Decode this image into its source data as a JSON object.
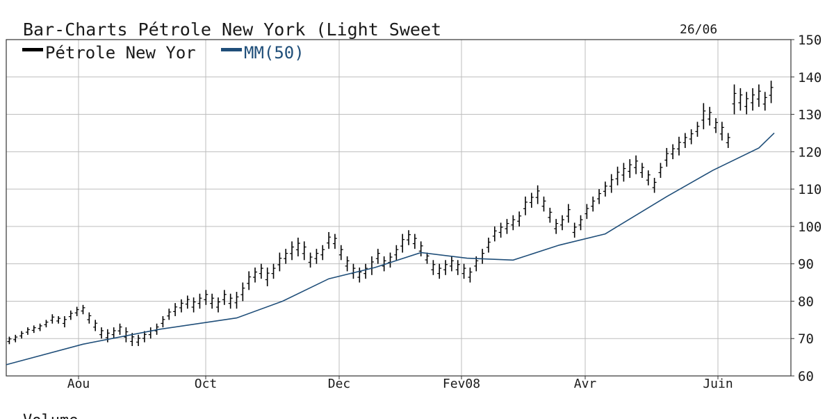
{
  "chart_data": {
    "type": "line",
    "chart_style": "OHLC bar chart",
    "title": "Bar-Charts   Pétrole New York (Light Sweet",
    "date_label": "26/06",
    "legend": [
      {
        "label": "Pétrole New Yor",
        "color": "#000000"
      },
      {
        "label": "MM(50)",
        "color": "#1f4e79"
      }
    ],
    "legend_placement": "top-left",
    "footer_label": "Volume",
    "y_axis": {
      "position": "right",
      "ylim": [
        60,
        150
      ],
      "ticks": [
        60,
        70,
        80,
        90,
        100,
        110,
        120,
        130,
        140,
        150
      ]
    },
    "x_ticks": [
      "Aou",
      "Oct",
      "Dec",
      "Fev08",
      "Avr",
      "Juin"
    ],
    "grid": true,
    "series": [
      {
        "name": "Pétrole New Yor",
        "type": "ohlc",
        "values": [
          [
            1,
            68.5,
            70.5
          ],
          [
            3,
            69,
            71
          ],
          [
            5,
            70,
            72
          ],
          [
            7,
            71,
            73
          ],
          [
            9,
            71.5,
            73.5
          ],
          [
            11,
            72,
            74
          ],
          [
            13,
            73,
            75
          ],
          [
            15,
            74,
            76.5
          ],
          [
            17,
            74,
            76
          ],
          [
            19,
            73,
            76
          ],
          [
            21,
            75,
            77.5
          ],
          [
            23,
            76,
            78.5
          ],
          [
            25,
            76.5,
            79
          ],
          [
            27,
            74,
            77
          ],
          [
            29,
            72,
            75
          ],
          [
            31,
            70,
            73
          ],
          [
            33,
            69,
            72.5
          ],
          [
            35,
            70,
            73
          ],
          [
            37,
            71,
            74
          ],
          [
            39,
            69,
            73
          ],
          [
            41,
            68,
            71.5
          ],
          [
            43,
            68,
            71
          ],
          [
            45,
            69,
            72
          ],
          [
            47,
            70,
            73
          ],
          [
            49,
            71,
            74
          ],
          [
            51,
            73,
            76
          ],
          [
            53,
            75,
            78
          ],
          [
            55,
            76,
            79.5
          ],
          [
            57,
            77,
            80.5
          ],
          [
            59,
            78,
            81.5
          ],
          [
            61,
            77,
            81
          ],
          [
            63,
            78,
            82
          ],
          [
            65,
            79,
            83
          ],
          [
            67,
            78,
            82
          ],
          [
            69,
            77,
            81
          ],
          [
            71,
            79,
            83
          ],
          [
            73,
            78,
            82
          ],
          [
            75,
            78,
            82.5
          ],
          [
            77,
            80,
            85
          ],
          [
            79,
            83,
            88
          ],
          [
            81,
            85,
            89
          ],
          [
            83,
            86,
            90
          ],
          [
            85,
            84,
            89
          ],
          [
            87,
            86,
            90
          ],
          [
            89,
            88,
            93
          ],
          [
            91,
            90,
            94
          ],
          [
            93,
            91,
            96
          ],
          [
            95,
            92,
            97
          ],
          [
            97,
            91,
            96
          ],
          [
            99,
            89,
            93
          ],
          [
            101,
            90,
            94
          ],
          [
            103,
            91,
            95
          ],
          [
            105,
            94,
            98.5
          ],
          [
            107,
            94,
            98
          ],
          [
            109,
            91,
            95
          ],
          [
            111,
            88,
            92
          ],
          [
            113,
            86,
            90
          ],
          [
            115,
            85,
            89
          ],
          [
            117,
            86,
            90
          ],
          [
            119,
            87,
            92
          ],
          [
            121,
            90,
            94
          ],
          [
            123,
            88,
            92
          ],
          [
            125,
            89,
            93
          ],
          [
            127,
            91,
            95
          ],
          [
            129,
            93,
            98
          ],
          [
            131,
            95,
            99
          ],
          [
            133,
            94,
            98
          ],
          [
            135,
            92,
            96
          ],
          [
            137,
            90,
            93
          ],
          [
            139,
            87,
            91
          ],
          [
            141,
            86,
            90
          ],
          [
            143,
            87,
            91
          ],
          [
            145,
            88,
            92
          ],
          [
            147,
            87,
            91
          ],
          [
            149,
            86,
            90
          ],
          [
            151,
            85,
            89
          ],
          [
            153,
            88,
            92
          ],
          [
            155,
            90,
            94
          ],
          [
            157,
            93,
            97
          ],
          [
            159,
            96,
            100
          ],
          [
            161,
            97,
            101
          ],
          [
            163,
            98,
            102
          ],
          [
            165,
            99,
            103
          ],
          [
            167,
            100,
            104
          ],
          [
            169,
            103,
            108
          ],
          [
            171,
            105,
            109
          ],
          [
            173,
            106,
            111
          ],
          [
            175,
            104,
            108
          ],
          [
            177,
            101,
            105
          ],
          [
            179,
            98,
            102
          ],
          [
            181,
            99,
            103
          ],
          [
            183,
            101,
            106
          ],
          [
            185,
            97,
            101
          ],
          [
            187,
            99,
            103
          ],
          [
            189,
            102,
            106
          ],
          [
            191,
            104,
            108
          ],
          [
            193,
            106,
            110
          ],
          [
            195,
            108,
            112
          ],
          [
            197,
            109,
            114
          ],
          [
            199,
            111,
            116
          ],
          [
            201,
            112,
            117
          ],
          [
            203,
            113,
            118
          ],
          [
            205,
            114,
            119
          ],
          [
            207,
            113,
            117
          ],
          [
            209,
            111,
            115
          ],
          [
            211,
            109,
            113
          ],
          [
            213,
            113,
            117
          ],
          [
            215,
            116,
            121
          ],
          [
            217,
            118,
            122
          ],
          [
            219,
            119,
            124
          ],
          [
            221,
            121,
            125
          ],
          [
            223,
            122,
            126
          ],
          [
            225,
            124,
            128
          ],
          [
            227,
            126,
            133
          ],
          [
            229,
            127,
            132
          ],
          [
            231,
            125,
            129
          ],
          [
            233,
            123,
            128
          ],
          [
            235,
            121,
            125
          ],
          [
            237,
            130,
            138
          ],
          [
            239,
            131,
            137
          ],
          [
            241,
            130,
            136
          ],
          [
            243,
            131,
            137
          ],
          [
            245,
            132,
            138
          ],
          [
            247,
            131,
            136
          ],
          [
            249,
            133,
            139
          ]
        ]
      },
      {
        "name": "MM(50)",
        "type": "line",
        "values": [
          [
            0,
            63
          ],
          [
            25,
            68.5
          ],
          [
            50,
            72.5
          ],
          [
            75,
            75.5
          ],
          [
            90,
            80
          ],
          [
            105,
            86
          ],
          [
            120,
            89
          ],
          [
            135,
            93
          ],
          [
            150,
            91.5
          ],
          [
            165,
            91
          ],
          [
            180,
            95
          ],
          [
            195,
            98
          ],
          [
            215,
            108
          ],
          [
            230,
            115
          ],
          [
            245,
            121
          ],
          [
            250,
            125
          ]
        ]
      }
    ]
  }
}
